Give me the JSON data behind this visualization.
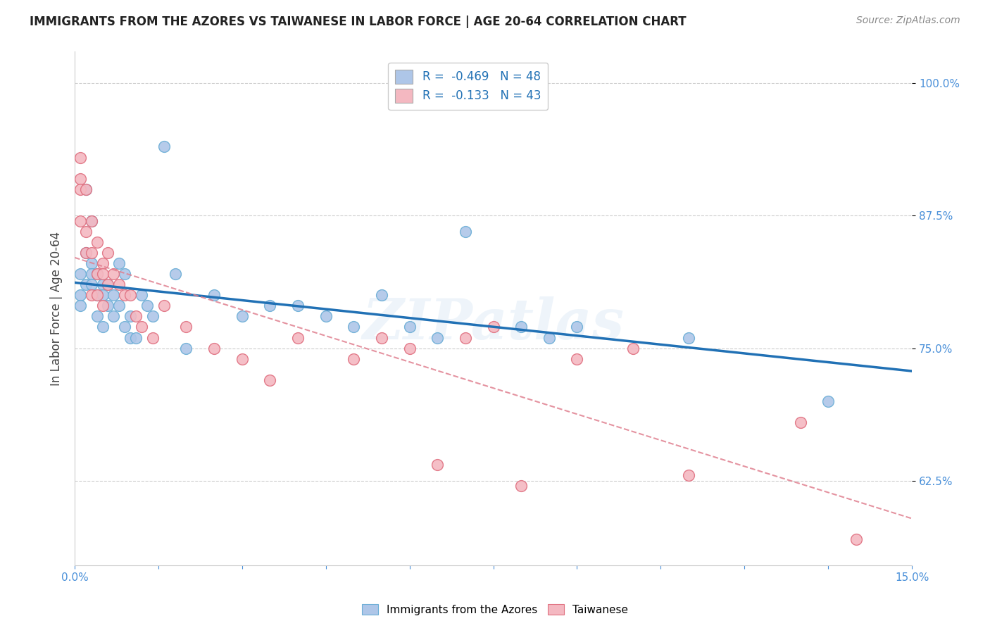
{
  "title": "IMMIGRANTS FROM THE AZORES VS TAIWANESE IN LABOR FORCE | AGE 20-64 CORRELATION CHART",
  "source": "Source: ZipAtlas.com",
  "ylabel": "In Labor Force | Age 20-64",
  "xlim": [
    0.0,
    0.15
  ],
  "ylim": [
    0.545,
    1.03
  ],
  "yticks": [
    0.625,
    0.75,
    0.875,
    1.0
  ],
  "ytick_labels": [
    "62.5%",
    "75.0%",
    "87.5%",
    "100.0%"
  ],
  "xticks": [
    0.0,
    0.015,
    0.03,
    0.045,
    0.06,
    0.075,
    0.09,
    0.105,
    0.12,
    0.135,
    0.15
  ],
  "xtick_labels": [
    "0.0%",
    "",
    "",
    "",
    "",
    "",
    "",
    "",
    "",
    "",
    "15.0%"
  ],
  "legend_entries": [
    {
      "label": "R =  -0.469   N = 48",
      "color": "#aec6e8"
    },
    {
      "label": "R =  -0.133   N = 43",
      "color": "#f4b8c1"
    }
  ],
  "azores_color": "#aec6e8",
  "azores_edge_color": "#6baed6",
  "taiwanese_color": "#f4b8c1",
  "taiwanese_edge_color": "#e07080",
  "trendline_azores_color": "#2171b5",
  "trendline_taiwanese_color": "#e08090",
  "watermark": "ZIPatlas",
  "azores_x": [
    0.001,
    0.001,
    0.001,
    0.002,
    0.002,
    0.002,
    0.003,
    0.003,
    0.003,
    0.003,
    0.004,
    0.004,
    0.004,
    0.005,
    0.005,
    0.005,
    0.006,
    0.006,
    0.007,
    0.007,
    0.008,
    0.008,
    0.009,
    0.009,
    0.01,
    0.01,
    0.011,
    0.012,
    0.013,
    0.014,
    0.016,
    0.018,
    0.02,
    0.025,
    0.03,
    0.035,
    0.04,
    0.045,
    0.05,
    0.055,
    0.06,
    0.065,
    0.07,
    0.08,
    0.085,
    0.09,
    0.11,
    0.135
  ],
  "azores_y": [
    0.82,
    0.8,
    0.79,
    0.9,
    0.84,
    0.81,
    0.87,
    0.83,
    0.82,
    0.81,
    0.82,
    0.8,
    0.78,
    0.81,
    0.8,
    0.77,
    0.81,
    0.79,
    0.8,
    0.78,
    0.83,
    0.79,
    0.82,
    0.77,
    0.78,
    0.76,
    0.76,
    0.8,
    0.79,
    0.78,
    0.94,
    0.82,
    0.75,
    0.8,
    0.78,
    0.79,
    0.79,
    0.78,
    0.77,
    0.8,
    0.77,
    0.76,
    0.86,
    0.77,
    0.76,
    0.77,
    0.76,
    0.7
  ],
  "taiwanese_x": [
    0.001,
    0.001,
    0.001,
    0.001,
    0.002,
    0.002,
    0.002,
    0.003,
    0.003,
    0.003,
    0.004,
    0.004,
    0.004,
    0.005,
    0.005,
    0.005,
    0.006,
    0.006,
    0.007,
    0.008,
    0.009,
    0.01,
    0.011,
    0.012,
    0.014,
    0.016,
    0.02,
    0.025,
    0.03,
    0.035,
    0.04,
    0.05,
    0.055,
    0.06,
    0.065,
    0.07,
    0.075,
    0.08,
    0.09,
    0.1,
    0.11,
    0.13,
    0.14
  ],
  "taiwanese_y": [
    0.93,
    0.91,
    0.9,
    0.87,
    0.9,
    0.86,
    0.84,
    0.87,
    0.84,
    0.8,
    0.85,
    0.82,
    0.8,
    0.83,
    0.82,
    0.79,
    0.84,
    0.81,
    0.82,
    0.81,
    0.8,
    0.8,
    0.78,
    0.77,
    0.76,
    0.79,
    0.77,
    0.75,
    0.74,
    0.72,
    0.76,
    0.74,
    0.76,
    0.75,
    0.64,
    0.76,
    0.77,
    0.62,
    0.74,
    0.75,
    0.63,
    0.68,
    0.57
  ]
}
